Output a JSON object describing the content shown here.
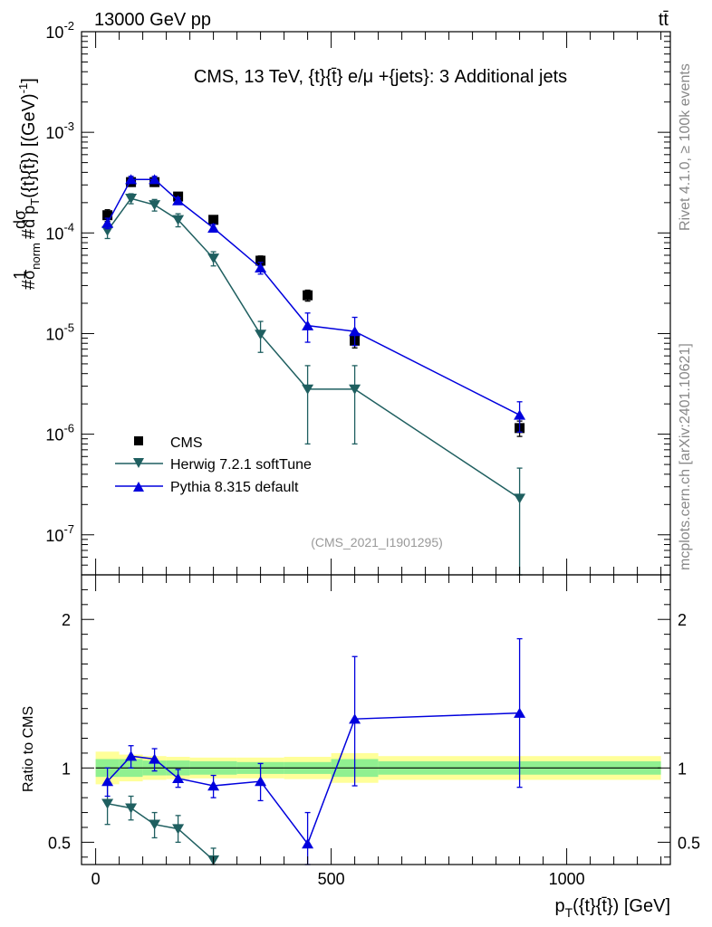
{
  "header": {
    "energy_label": "13000 GeV pp",
    "process_label": "tt̄",
    "side_rivet": "Rivet 4.1.0, ≥ 100k events",
    "side_site": "mcplots.cern.ch [arXiv:2401.10621]"
  },
  "main_panel": {
    "title": "CMS, 13 TeV, {t}{t̄} e/μ +{jets}: 3 Additional jets",
    "ylabel": "#1/σ_norm #dσ/d p_T({t}{t̄}) [(GeV)^-1]",
    "analysis_tag": "(CMS_2021_I1901295)"
  },
  "ratio_panel": {
    "ylabel": "Ratio to CMS"
  },
  "x_axis": {
    "label": "p_T({t}{t̄}) [GeV]",
    "range": [
      -30,
      1220
    ],
    "ticks": [
      {
        "value": 0,
        "label": "0"
      },
      {
        "value": 500,
        "label": "500"
      },
      {
        "value": 1000,
        "label": "1000"
      }
    ]
  },
  "legend": {
    "items": [
      {
        "label": "CMS",
        "series": "cms"
      },
      {
        "label": "Herwig 7.2.1 softTune",
        "series": "herwig"
      },
      {
        "label": "Pythia 8.315 default",
        "series": "pythia"
      }
    ]
  },
  "colors": {
    "cms": "#000000",
    "herwig": "#1f5f60",
    "pythia": "#0000dd",
    "band_inner": "#90f090",
    "band_outer": "#ffff99"
  },
  "chart_data": [
    {
      "type": "line",
      "scale": "log",
      "ylim": [
        4e-08,
        0.01
      ],
      "yticks": [
        {
          "value": 1e-07,
          "label": "10^-7"
        },
        {
          "value": 1e-06,
          "label": "10^-6"
        },
        {
          "value": 1e-05,
          "label": "10^-5"
        },
        {
          "value": 0.0001,
          "label": "10^-4"
        },
        {
          "value": 0.001,
          "label": "10^-3"
        },
        {
          "value": 0.01,
          "label": "10^-2"
        }
      ],
      "series": [
        {
          "name": "CMS",
          "id": "cms",
          "marker": "square",
          "x": [
            25,
            75,
            125,
            175,
            250,
            350,
            450,
            550,
            900
          ],
          "y": [
            0.00015,
            0.00032,
            0.00032,
            0.00023,
            0.000135,
            5.3e-05,
            2.4e-05,
            8.5e-06,
            1.15e-06
          ],
          "yerr_low": [
            0.00013,
            0.00029,
            0.00029,
            0.00021,
            0.000122,
            4.7e-05,
            2.1e-05,
            7.2e-06,
            9.5e-07
          ],
          "yerr_high": [
            0.00017,
            0.00035,
            0.00035,
            0.00025,
            0.000148,
            5.9e-05,
            2.7e-05,
            9.8e-06,
            1.35e-06
          ]
        },
        {
          "name": "Herwig 7.2.1 softTune",
          "id": "herwig",
          "marker": "triangle-down",
          "x": [
            25,
            75,
            125,
            175,
            250,
            350,
            450,
            550,
            900
          ],
          "y": [
            0.000105,
            0.00022,
            0.00019,
            0.000135,
            5.6e-05,
            9.8e-06,
            2.8e-06,
            2.8e-06,
            2.3e-07
          ],
          "yerr_low": [
            8.8e-05,
            0.000195,
            0.000165,
            0.000115,
            4.7e-05,
            6.5e-06,
            8e-07,
            8e-07,
            4e-08
          ],
          "yerr_high": [
            0.000122,
            0.000245,
            0.000215,
            0.000155,
            6.5e-05,
            1.32e-05,
            4.8e-06,
            4.8e-06,
            4.6e-07
          ]
        },
        {
          "name": "Pythia 8.315 default",
          "id": "pythia",
          "marker": "triangle-up",
          "x": [
            25,
            75,
            125,
            175,
            250,
            350,
            450,
            550,
            900
          ],
          "y": [
            0.000125,
            0.00034,
            0.00034,
            0.00021,
            0.000112,
            4.5e-05,
            1.2e-05,
            1.05e-05,
            1.55e-06
          ],
          "yerr_low": [
            0.00011,
            0.000315,
            0.000315,
            0.000195,
            0.000102,
            3.9e-05,
            8.2e-06,
            7.6e-06,
            1.05e-06
          ],
          "yerr_high": [
            0.00014,
            0.000365,
            0.000365,
            0.000225,
            0.000122,
            5.1e-05,
            1.6e-05,
            1.45e-05,
            2.1e-06
          ]
        }
      ]
    },
    {
      "type": "line",
      "scale": "linear",
      "ylabel": "Ratio to CMS",
      "ylim": [
        0.35,
        2.3
      ],
      "reference_line": 1.0,
      "yticks": [
        {
          "value": 0.5,
          "label": "0.5"
        },
        {
          "value": 1,
          "label": "1"
        },
        {
          "value": 2,
          "label": "2"
        }
      ],
      "uncertainty_band": {
        "bin_edges": [
          0,
          50,
          100,
          150,
          200,
          300,
          400,
          500,
          600,
          1200
        ],
        "inner_low": [
          0.94,
          0.94,
          0.95,
          0.95,
          0.955,
          0.96,
          0.96,
          0.94,
          0.955
        ],
        "inner_high": [
          1.06,
          1.06,
          1.05,
          1.05,
          1.045,
          1.04,
          1.04,
          1.06,
          1.045
        ],
        "outer_low": [
          0.89,
          0.91,
          0.92,
          0.925,
          0.93,
          0.93,
          0.925,
          0.9,
          0.92
        ],
        "outer_high": [
          1.11,
          1.09,
          1.08,
          1.075,
          1.07,
          1.07,
          1.075,
          1.1,
          1.08
        ]
      },
      "series": [
        {
          "name": "Herwig 7.2.1 softTune",
          "id": "herwig",
          "marker": "triangle-down",
          "x": [
            25,
            75,
            125,
            175,
            250
          ],
          "y": [
            0.76,
            0.73,
            0.62,
            0.59,
            0.38
          ],
          "yerr_low": [
            0.62,
            0.65,
            0.53,
            0.5,
            0.3
          ],
          "yerr_high": [
            0.89,
            0.81,
            0.7,
            0.68,
            0.46
          ]
        },
        {
          "name": "Pythia 8.315 default",
          "id": "pythia",
          "marker": "triangle-up",
          "x": [
            25,
            75,
            125,
            175,
            250,
            350,
            450,
            550,
            900
          ],
          "y": [
            0.91,
            1.08,
            1.06,
            0.93,
            0.88,
            0.91,
            0.49,
            1.33,
            1.37
          ],
          "yerr_low": [
            0.81,
            1.0,
            0.98,
            0.87,
            0.8,
            0.78,
            0.32,
            0.88,
            0.87
          ],
          "yerr_high": [
            1.0,
            1.15,
            1.13,
            0.99,
            0.95,
            1.03,
            0.7,
            1.75,
            1.87
          ]
        }
      ]
    }
  ]
}
